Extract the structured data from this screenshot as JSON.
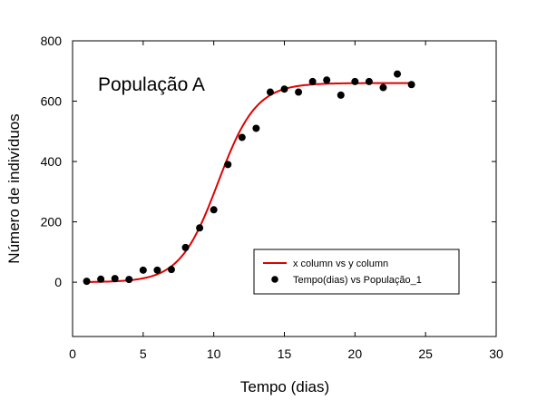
{
  "chart_data": {
    "type": "scatter",
    "annotation": "População A",
    "xlabel": "Tempo (dias)",
    "ylabel": "Número de indivíduos",
    "xlim": [
      0,
      30
    ],
    "ylim": [
      -180,
      800
    ],
    "xticks": [
      0,
      5,
      10,
      15,
      20,
      25,
      30
    ],
    "yticks": [
      0,
      200,
      400,
      600,
      800
    ],
    "grid": false,
    "legend_position": "lower-right",
    "series": [
      {
        "name": "x column vs y column",
        "kind": "line",
        "color": "#e00000",
        "model": {
          "K": 660,
          "r": 0.74,
          "t0": 10.3
        },
        "x_range": [
          1,
          24
        ]
      },
      {
        "name": "Tempo(dias) vs População_1",
        "kind": "scatter",
        "color": "#000000",
        "x": [
          1,
          2,
          3,
          4,
          5,
          6,
          7,
          8,
          9,
          10,
          11,
          12,
          13,
          14,
          15,
          16,
          17,
          18,
          19,
          20,
          21,
          22,
          23,
          24
        ],
        "y": [
          3,
          10,
          12,
          9,
          40,
          40,
          42,
          115,
          180,
          240,
          390,
          480,
          510,
          630,
          640,
          630,
          665,
          670,
          620,
          665,
          665,
          645,
          690,
          655
        ]
      }
    ]
  }
}
